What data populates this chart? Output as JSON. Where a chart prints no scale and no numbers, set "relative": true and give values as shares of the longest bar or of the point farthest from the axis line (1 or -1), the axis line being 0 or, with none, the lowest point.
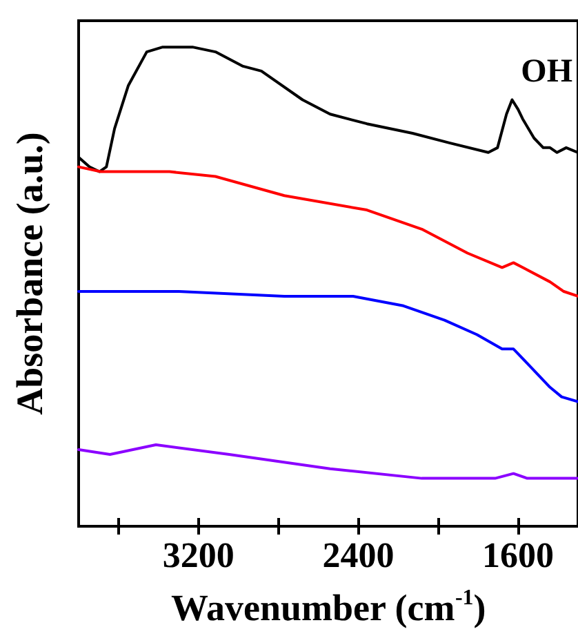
{
  "chart_data": {
    "type": "line",
    "xlabel": "Wavenumber (cm$^{-1}$)",
    "ylabel": "Absorbance (a.u.)",
    "relative": true,
    "xlim": [
      3800,
      1300
    ],
    "xticks": [
      {
        "value": 3600,
        "label": null
      },
      3200,
      {
        "value": 2800,
        "label": null
      },
      2400,
      {
        "value": 2000,
        "label": null
      },
      1600
    ],
    "annotations": [
      "OH"
    ],
    "grid": false,
    "marker": "none",
    "line_style": "solid",
    "series": [
      {
        "color": "#000000",
        "x": [
          3800,
          3746,
          3696,
          3661,
          3620,
          3551,
          3459,
          3379,
          3230,
          3115,
          2977,
          2885,
          2817,
          2679,
          2541,
          2357,
          2128,
          1944,
          1749,
          1703,
          1658,
          1630,
          1600,
          1577,
          1520,
          1474,
          1440,
          1405,
          1359,
          1300
        ],
        "values": [
          0.77,
          0.75,
          0.74,
          0.75,
          0.83,
          0.92,
          0.99,
          1.0,
          1.0,
          0.99,
          0.96,
          0.95,
          0.93,
          0.89,
          0.86,
          0.84,
          0.82,
          0.8,
          0.78,
          0.79,
          0.86,
          0.89,
          0.87,
          0.85,
          0.81,
          0.79,
          0.79,
          0.78,
          0.79,
          0.78
        ]
      },
      {
        "color": "#ff0000",
        "x": [
          3800,
          3689,
          3345,
          3115,
          2770,
          2357,
          2082,
          1853,
          1680,
          1623,
          1577,
          1440,
          1371,
          1300
        ],
        "values": [
          0.75,
          0.74,
          0.74,
          0.73,
          0.69,
          0.66,
          0.62,
          0.57,
          0.54,
          0.55,
          0.54,
          0.51,
          0.49,
          0.48
        ]
      },
      {
        "color": "#0000ff",
        "x": [
          3800,
          3298,
          2770,
          2426,
          2174,
          1968,
          1806,
          1680,
          1623,
          1554,
          1440,
          1382,
          1300
        ],
        "values": [
          0.49,
          0.49,
          0.48,
          0.48,
          0.46,
          0.43,
          0.4,
          0.37,
          0.37,
          0.34,
          0.29,
          0.27,
          0.26
        ]
      },
      {
        "color": "#8b00ff",
        "x": [
          3800,
          3643,
          3413,
          3046,
          2541,
          2082,
          1715,
          1623,
          1554,
          1300
        ],
        "values": [
          0.16,
          0.15,
          0.17,
          0.15,
          0.12,
          0.1,
          0.1,
          0.11,
          0.1,
          0.1
        ]
      }
    ]
  }
}
